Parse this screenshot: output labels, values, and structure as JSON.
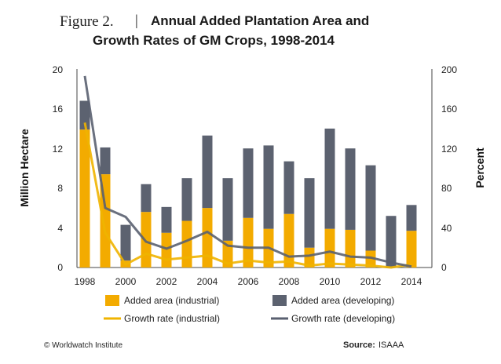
{
  "figure_label": "Figure 2.",
  "figure_separator": "|",
  "title_line1": "Annual Added Plantation Area and",
  "title_line2": "Growth Rates of GM Crops, 1998-2014",
  "copyright": "© Worldwatch  Institute",
  "source_label": "Source:",
  "source_value": "ISAAA",
  "colors": {
    "industrial": "#f3ab00",
    "developing": "#5c6270",
    "industrial_line": "#f0b400",
    "developing_line": "#5a6070"
  },
  "chart_data": {
    "type": "bar",
    "xlabel": "",
    "ylabel": "Million Hectare",
    "y2label": "Percent",
    "ylim": [
      0,
      20
    ],
    "y2lim": [
      0,
      200
    ],
    "yticks": [
      "0",
      "4",
      "8",
      "12",
      "16",
      "20"
    ],
    "y2ticks": [
      "0",
      "40",
      "80",
      "120",
      "160",
      "200"
    ],
    "x": [
      1998,
      1999,
      2000,
      2001,
      2002,
      2003,
      2004,
      2005,
      2006,
      2007,
      2008,
      2009,
      2010,
      2011,
      2012,
      2013,
      2014
    ],
    "xtick_labels": [
      "1998",
      "2000",
      "2002",
      "2004",
      "2006",
      "2008",
      "2010",
      "2012",
      "2014"
    ],
    "grid": false,
    "legend_position": "bottom",
    "bar_series": [
      {
        "name": "Added area (industrial)",
        "values": [
          13.9,
          9.4,
          0.7,
          5.6,
          3.5,
          4.7,
          6.0,
          2.7,
          5.0,
          3.9,
          5.4,
          2.0,
          3.9,
          3.8,
          1.7,
          0.0,
          3.7
        ]
      },
      {
        "name": "Added area (developing)",
        "values": [
          2.9,
          2.7,
          3.6,
          2.8,
          2.6,
          4.3,
          7.3,
          6.3,
          7.0,
          8.4,
          5.3,
          7.0,
          10.1,
          8.2,
          8.6,
          5.2,
          2.6
        ]
      }
    ],
    "line_series": [
      {
        "name": "Growth rate (industrial)",
        "axis": "right",
        "values": [
          146,
          35,
          3,
          14,
          8,
          10,
          12,
          4,
          7,
          5,
          6,
          2,
          4,
          3,
          2,
          0,
          3
        ]
      },
      {
        "name": "Growth rate (developing)",
        "axis": "right",
        "values": [
          193,
          60,
          51,
          26,
          19,
          27,
          36,
          22,
          20,
          20,
          11,
          12,
          16,
          11,
          10,
          5,
          1
        ]
      }
    ]
  }
}
